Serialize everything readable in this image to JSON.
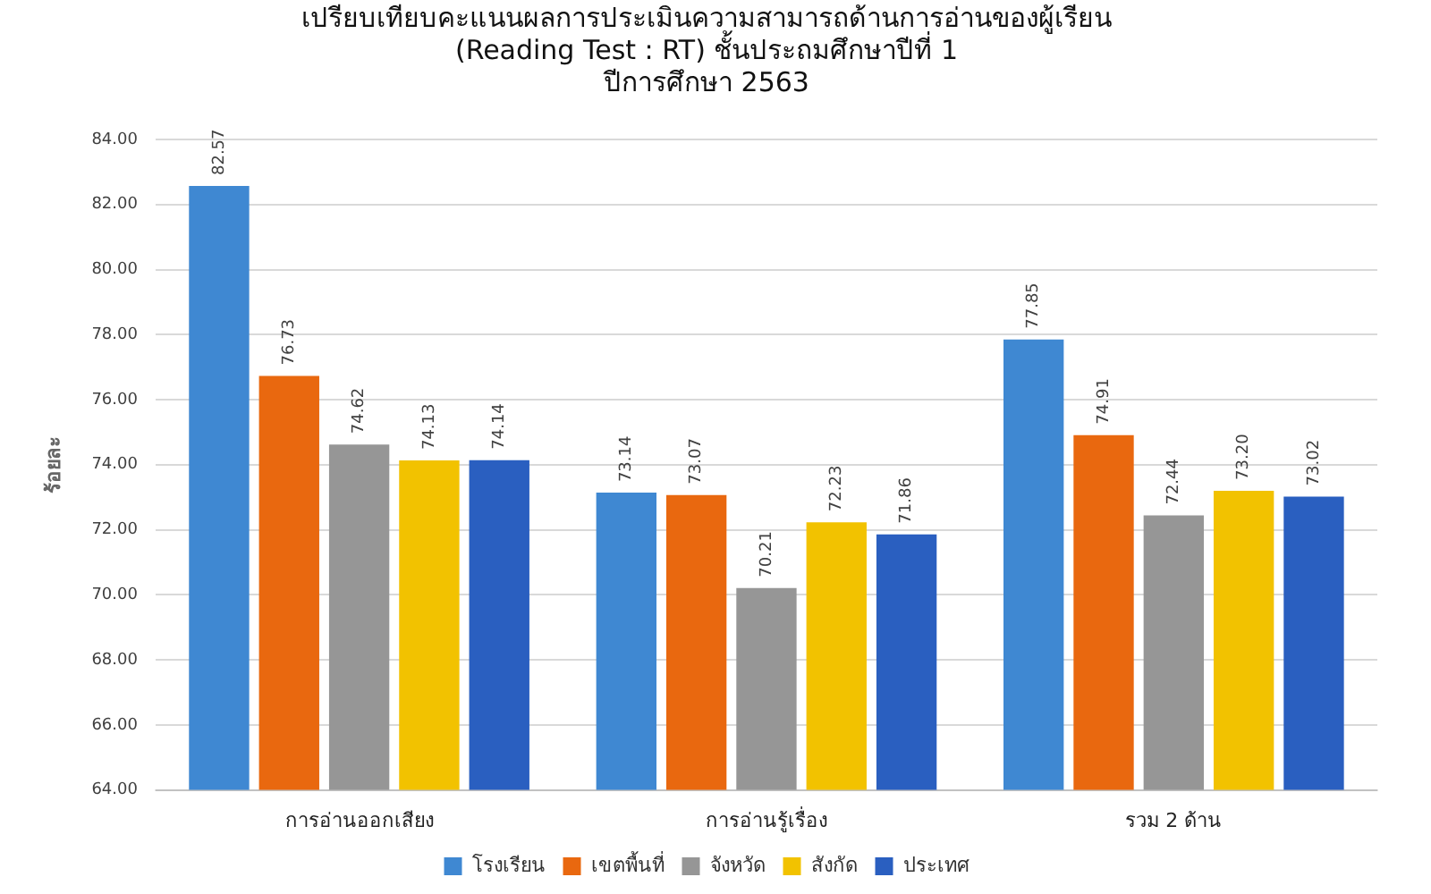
{
  "chart_data": {
    "type": "bar",
    "title": "เปรียบเทียบคะแนนผลการประเมินความสามารถด้านการอ่านของผู้เรียน\n(Reading Test : RT) ชั้นประถมศึกษาปีที่ 1\nปีการศึกษา 2563",
    "ylabel": "ร้อยละ",
    "categories": [
      "การอ่านออกเสียง",
      "การอ่านรู้เรื่อง",
      "รวม 2 ด้าน"
    ],
    "series": [
      {
        "name": "โรงเรียน",
        "color": "#3f88d2",
        "values": [
          82.57,
          73.14,
          77.85
        ]
      },
      {
        "name": "เขตพื้นที่",
        "color": "#e9680f",
        "values": [
          76.73,
          73.07,
          74.91
        ]
      },
      {
        "name": "จังหวัด",
        "color": "#969696",
        "values": [
          74.62,
          70.21,
          72.44
        ]
      },
      {
        "name": "สังกัด",
        "color": "#f2c200",
        "values": [
          74.13,
          72.23,
          73.2
        ]
      },
      {
        "name": "ประเทศ",
        "color": "#2a5fc0",
        "values": [
          74.14,
          71.86,
          73.02
        ]
      }
    ],
    "ylim": [
      64,
      84
    ],
    "yticks": [
      {
        "value": 64,
        "label": "64.00"
      },
      {
        "value": 66,
        "label": "66.00"
      },
      {
        "value": 68,
        "label": "68.00"
      },
      {
        "value": 70,
        "label": "70.00"
      },
      {
        "value": 72,
        "label": "72.00"
      },
      {
        "value": 74,
        "label": "74.00"
      },
      {
        "value": 76,
        "label": "76.00"
      },
      {
        "value": 78,
        "label": "78.00"
      },
      {
        "value": 80,
        "label": "80.00"
      },
      {
        "value": 82,
        "label": "82.00"
      },
      {
        "value": 84,
        "label": "84.00"
      }
    ],
    "value_labels": [
      [
        "82.57",
        "73.14",
        "77.85"
      ],
      [
        "76.73",
        "73.07",
        "74.91"
      ],
      [
        "74.62",
        "70.21",
        "72.44"
      ],
      [
        "74.13",
        "72.23",
        "73.20"
      ],
      [
        "74.14",
        "71.86",
        "73.02"
      ]
    ],
    "grid": "y",
    "legend": "bottom"
  }
}
